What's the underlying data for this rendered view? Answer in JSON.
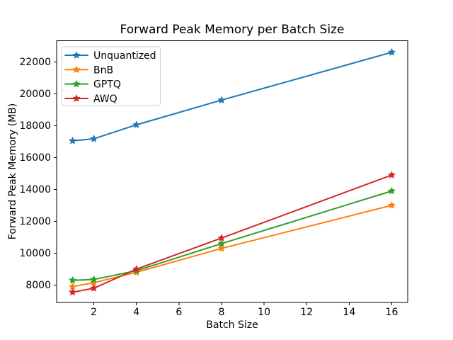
{
  "chart_data": {
    "type": "line",
    "title": "Forward Peak Memory per Batch Size",
    "xlabel": "Batch Size",
    "ylabel": "Forward Peak Memory (MB)",
    "x": [
      1,
      2,
      4,
      8,
      16
    ],
    "series": [
      {
        "name": "Unquantized",
        "color": "#1f77b4",
        "marker": "star",
        "values": [
          17050,
          17175,
          18050,
          19600,
          22600
        ]
      },
      {
        "name": "BnB",
        "color": "#ff7f0e",
        "marker": "star",
        "values": [
          7900,
          8150,
          8800,
          10300,
          13000
        ]
      },
      {
        "name": "GPTQ",
        "color": "#2ca02c",
        "marker": "star",
        "values": [
          8300,
          8350,
          8900,
          10600,
          13900
        ]
      },
      {
        "name": "AWQ",
        "color": "#d62728",
        "marker": "star",
        "values": [
          7550,
          7800,
          9000,
          10950,
          14900
        ]
      }
    ],
    "xticks": [
      2,
      4,
      6,
      8,
      10,
      12,
      14,
      16
    ],
    "yticks": [
      8000,
      10000,
      12000,
      14000,
      16000,
      18000,
      20000,
      22000
    ],
    "xlim": [
      0.25,
      16.75
    ],
    "ylim": [
      6900,
      23325
    ],
    "grid": false,
    "legend": {
      "position": "upper left"
    },
    "colors": {
      "spine": "#000000",
      "legend_border": "#cccccc",
      "legend_background": "#ffffff",
      "text": "#000000"
    }
  }
}
